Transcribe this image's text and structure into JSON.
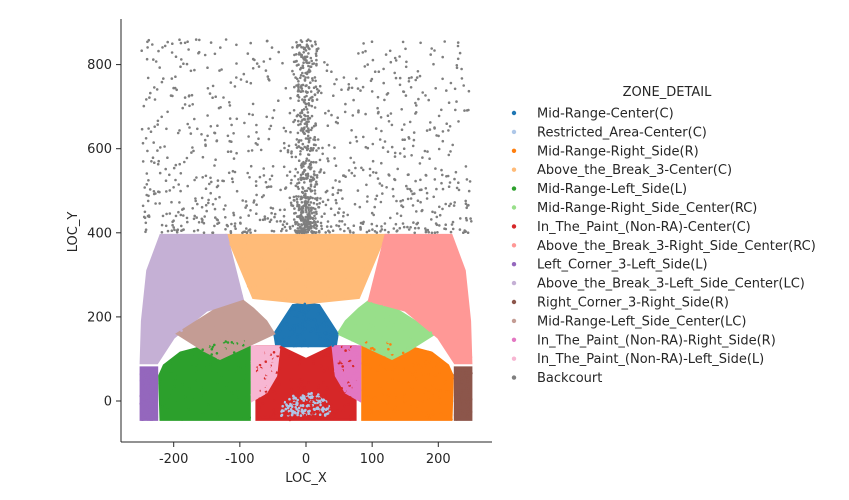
{
  "chart_data": {
    "type": "scatter",
    "xlabel": "LOC_X",
    "ylabel": "LOC_Y",
    "xlim": [
      -280,
      280
    ],
    "ylim": [
      -100,
      910
    ],
    "xticks": [
      -200,
      -100,
      0,
      100,
      200
    ],
    "yticks": [
      0,
      200,
      400,
      600,
      800
    ],
    "grid": false,
    "legend": {
      "title": "ZONE_DETAIL",
      "placement": "right"
    },
    "series": [
      {
        "name": "Mid-Range-Center(C)",
        "color": "#1f77b4",
        "polygon": [
          [
            -48,
            160
          ],
          [
            -20,
            228
          ],
          [
            0,
            232
          ],
          [
            20,
            228
          ],
          [
            48,
            160
          ],
          [
            45,
            130
          ],
          [
            0,
            130
          ],
          [
            -45,
            130
          ]
        ]
      },
      {
        "name": "Restricted_Area-Center(C)",
        "color": "#aec7e8",
        "polygon": [
          [
            -38,
            -35
          ],
          [
            -35,
            -5
          ],
          [
            -22,
            15
          ],
          [
            0,
            22
          ],
          [
            22,
            15
          ],
          [
            35,
            -5
          ],
          [
            38,
            -35
          ]
        ]
      },
      {
        "name": "Mid-Range-Right_Side(R)",
        "color": "#ff7f0e",
        "polygon": [
          [
            85,
            -45
          ],
          [
            220,
            -45
          ],
          [
            222,
            60
          ],
          [
            215,
            85
          ],
          [
            190,
            115
          ],
          [
            130,
            140
          ],
          [
            85,
            150
          ]
        ]
      },
      {
        "name": "Above_the_Break_3-Center(C)",
        "color": "#ffbb78",
        "polygon": [
          [
            -120,
            395
          ],
          [
            120,
            395
          ],
          [
            80,
            245
          ],
          [
            0,
            232
          ],
          [
            -80,
            245
          ]
        ]
      },
      {
        "name": "Mid-Range-Left_Side(L)",
        "color": "#2ca02c",
        "polygon": [
          [
            -220,
            -45
          ],
          [
            -85,
            -45
          ],
          [
            -85,
            150
          ],
          [
            -130,
            140
          ],
          [
            -190,
            115
          ],
          [
            -215,
            85
          ],
          [
            -222,
            60
          ]
        ]
      },
      {
        "name": "Mid-Range-Right_Side_Center(RC)",
        "color": "#98df8a",
        "polygon": [
          [
            48,
            160
          ],
          [
            60,
            190
          ],
          [
            80,
            220
          ],
          [
            95,
            238
          ],
          [
            140,
            215
          ],
          [
            195,
            160
          ],
          [
            155,
            120
          ],
          [
            130,
            100
          ]
        ]
      },
      {
        "name": "In_The_Paint_(Non-RA)-Center(C)",
        "color": "#d62728",
        "polygon": [
          [
            -75,
            -45
          ],
          [
            75,
            -45
          ],
          [
            75,
            130
          ],
          [
            40,
            130
          ],
          [
            0,
            100
          ],
          [
            -40,
            130
          ],
          [
            -75,
            130
          ]
        ]
      },
      {
        "name": "Above_the_Break_3-Right_Side_Center(RC)",
        "color": "#ff9896",
        "polygon": [
          [
            120,
            395
          ],
          [
            220,
            395
          ],
          [
            240,
            310
          ],
          [
            248,
            190
          ],
          [
            250,
            90
          ],
          [
            225,
            90
          ],
          [
            200,
            150
          ],
          [
            150,
            215
          ],
          [
            95,
            238
          ]
        ]
      },
      {
        "name": "Left_Corner_3-Left_Side(L)",
        "color": "#9467bd",
        "polygon": [
          [
            -250,
            -45
          ],
          [
            -225,
            -45
          ],
          [
            -225,
            80
          ],
          [
            -250,
            80
          ]
        ]
      },
      {
        "name": "Above_the_Break_3-Left_Side_Center(LC)",
        "color": "#c5b0d5",
        "polygon": [
          [
            -220,
            395
          ],
          [
            -120,
            395
          ],
          [
            -95,
            238
          ],
          [
            -150,
            215
          ],
          [
            -200,
            150
          ],
          [
            -225,
            90
          ],
          [
            -250,
            90
          ],
          [
            -248,
            190
          ],
          [
            -240,
            310
          ]
        ]
      },
      {
        "name": "Right_Corner_3-Right_Side(R)",
        "color": "#8c564b",
        "polygon": [
          [
            225,
            -45
          ],
          [
            250,
            -45
          ],
          [
            250,
            80
          ],
          [
            225,
            80
          ]
        ]
      },
      {
        "name": "Mid-Range-Left_Side_Center(LC)",
        "color": "#c49c94",
        "polygon": [
          [
            -48,
            160
          ],
          [
            -130,
            100
          ],
          [
            -155,
            120
          ],
          [
            -195,
            160
          ],
          [
            -140,
            215
          ],
          [
            -95,
            238
          ],
          [
            -80,
            220
          ],
          [
            -60,
            190
          ]
        ]
      },
      {
        "name": "In_The_Paint_(Non-RA)-Right_Side(R)",
        "color": "#e377c2",
        "polygon": [
          [
            40,
            130
          ],
          [
            82,
            130
          ],
          [
            82,
            0
          ],
          [
            60,
            20
          ],
          [
            45,
            60
          ]
        ]
      },
      {
        "name": "In_The_Paint_(Non-RA)-Left_Side(L)",
        "color": "#f7b6d2",
        "polygon": [
          [
            -82,
            130
          ],
          [
            -40,
            130
          ],
          [
            -45,
            60
          ],
          [
            -60,
            20
          ],
          [
            -82,
            0
          ]
        ]
      },
      {
        "name": "Backcourt",
        "color": "#7f7f7f",
        "polygon": [
          [
            -250,
            400
          ],
          [
            250,
            400
          ],
          [
            250,
            860
          ],
          [
            -250,
            860
          ]
        ]
      }
    ]
  }
}
